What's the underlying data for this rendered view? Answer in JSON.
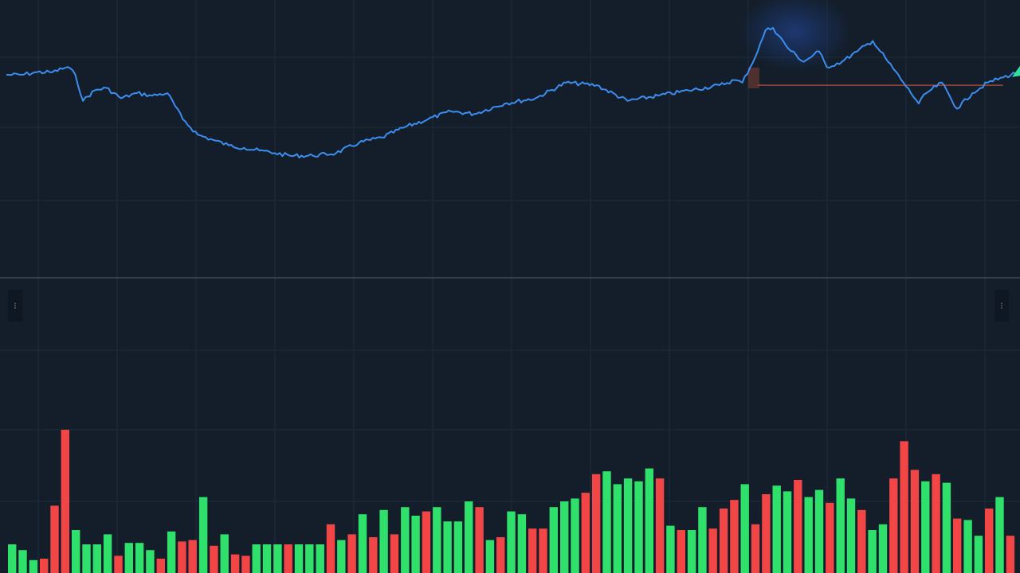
{
  "colors": {
    "background": "#131e2a",
    "grid": "#1f2c3a",
    "price_line": "#3b8df0",
    "separator": "#3c4a58",
    "level_line": "#c0533a",
    "volume_up": "#2fe06a",
    "volume_down": "#f24646",
    "glow": "#1e3a78",
    "end_marker": "#34e0a0"
  },
  "handles": {
    "left_glyph": "⁝",
    "right_glyph": "⁝"
  },
  "chart_data": [
    {
      "type": "line",
      "title": "",
      "xlabel": "",
      "ylabel": "",
      "grid": true,
      "ylim": [
        0,
        100
      ],
      "level_line": {
        "value": 71,
        "x_start": 196,
        "x_end": 260
      },
      "highlight_x_range": [
        196,
        232
      ],
      "x": [
        0,
        4,
        8,
        12,
        16,
        18,
        20,
        23,
        26,
        30,
        34,
        38,
        42,
        46,
        50,
        54,
        58,
        62,
        66,
        70,
        74,
        80,
        86,
        92,
        98,
        104,
        110,
        116,
        122,
        130,
        138,
        146,
        154,
        162,
        170,
        178,
        186,
        190,
        192,
        196,
        198,
        200,
        204,
        208,
        212,
        214,
        218,
        222,
        226,
        230,
        234,
        238,
        240,
        244,
        248,
        252,
        256,
        260,
        264
      ],
      "y": [
        75,
        75,
        76,
        76,
        78,
        75,
        65,
        69,
        70,
        66,
        68,
        67,
        68,
        58,
        52,
        50,
        48,
        47,
        46,
        45,
        44,
        44,
        45,
        49,
        51,
        55,
        58,
        61,
        60,
        64,
        66,
        72,
        71,
        65,
        67,
        69,
        71,
        73,
        72,
        84,
        92,
        93,
        85,
        80,
        84,
        78,
        80,
        84,
        88,
        80,
        72,
        64,
        68,
        72,
        62,
        68,
        72,
        74,
        76
      ]
    },
    {
      "type": "bar",
      "title": "",
      "xlabel": "",
      "ylabel": "",
      "grid": true,
      "ylim": [
        0,
        100
      ],
      "up": [
        true,
        true,
        true,
        false,
        false,
        false,
        true,
        true,
        true,
        true,
        false,
        true,
        true,
        true,
        false,
        true,
        false,
        false,
        true,
        false,
        true,
        false,
        false,
        true,
        true,
        true,
        false,
        true,
        true,
        true,
        false,
        true,
        false,
        true,
        false,
        true,
        false,
        true,
        true,
        false,
        true,
        true,
        true,
        true,
        false,
        true,
        false,
        true,
        true,
        false,
        false,
        true,
        true,
        true,
        false,
        false,
        true,
        true,
        true,
        true,
        true,
        false,
        true,
        false,
        true,
        true,
        false,
        false,
        false,
        true,
        false,
        false,
        true,
        true,
        false,
        true,
        true,
        false,
        true,
        true,
        false,
        true,
        true,
        false,
        false,
        false,
        true,
        false,
        true,
        false,
        true,
        true,
        false,
        true,
        false
      ],
      "values": [
        20,
        16,
        9,
        10,
        47,
        100,
        30,
        20,
        20,
        27,
        12,
        21,
        21,
        16,
        10,
        29,
        22,
        23,
        53,
        19,
        27,
        13,
        12,
        20,
        20,
        20,
        20,
        20,
        20,
        20,
        34,
        23,
        27,
        41,
        25,
        44,
        27,
        46,
        40,
        43,
        46,
        36,
        36,
        50,
        46,
        23,
        25,
        43,
        41,
        31,
        31,
        46,
        50,
        52,
        56,
        69,
        71,
        62,
        66,
        64,
        73,
        66,
        33,
        30,
        30,
        46,
        31,
        45,
        51,
        62,
        34,
        55,
        61,
        57,
        65,
        53,
        58,
        49,
        66,
        52,
        44,
        30,
        34,
        66,
        92,
        72,
        64,
        69,
        63,
        38,
        37,
        26,
        45,
        53,
        26
      ]
    }
  ]
}
